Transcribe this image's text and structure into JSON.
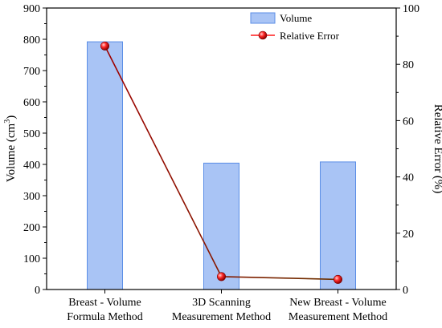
{
  "chart_data": {
    "type": "bar+line",
    "categories": [
      [
        "Breast - Volume",
        "Formula Method"
      ],
      [
        "3D Scanning",
        "Measurement Method"
      ],
      [
        "New Breast - Volume",
        "Measurement Method"
      ]
    ],
    "series": [
      {
        "name": "Volume",
        "type": "bar",
        "axis": "left",
        "values": [
          792,
          404,
          408
        ],
        "color": "#a9c4f5",
        "border_color": "#5b8ee6"
      },
      {
        "name": "Relative Error",
        "type": "line",
        "axis": "right",
        "values": [
          86.5,
          4.6,
          3.6
        ],
        "color": "#ff1a1a"
      }
    ],
    "left_axis": {
      "label_main": "Volume (cm",
      "label_sup": "3",
      "label_end": ")",
      "ylim": [
        0,
        900
      ],
      "ticks": [
        0,
        100,
        200,
        300,
        400,
        500,
        600,
        700,
        800,
        900
      ]
    },
    "right_axis": {
      "label": "Relative Error (%)",
      "ylim": [
        0,
        100
      ],
      "ticks": [
        0,
        20,
        40,
        60,
        80,
        100
      ]
    },
    "legend": {
      "placement": "top-center",
      "items": [
        "Volume",
        "Relative Error"
      ]
    },
    "grid": false
  }
}
